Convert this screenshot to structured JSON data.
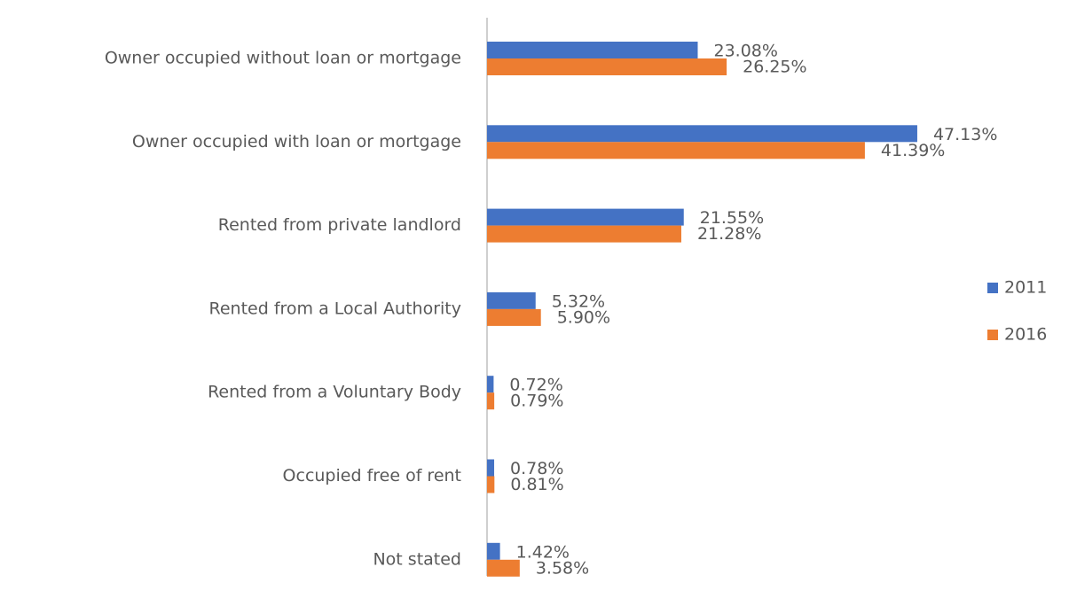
{
  "chart_data": {
    "type": "hbar",
    "categories": [
      "Owner occupied without loan or mortgage",
      "Owner occupied with loan or mortgage",
      "Rented from private landlord",
      "Rented from a Local Authority",
      "Rented from a Voluntary Body",
      "Occupied free of rent",
      "Not stated"
    ],
    "series": [
      {
        "name": "2011",
        "color": "#4472c4",
        "values": [
          23.08,
          47.13,
          21.55,
          5.32,
          0.72,
          0.78,
          1.42
        ],
        "value_labels": [
          "23.08%",
          "47.13%",
          "21.55%",
          "5.32%",
          "0.72%",
          "0.78%",
          "1.42%"
        ]
      },
      {
        "name": "2016",
        "color": "#ed7d31",
        "values": [
          26.25,
          41.39,
          21.28,
          5.9,
          0.79,
          0.81,
          3.58
        ],
        "value_labels": [
          "26.25%",
          "41.39%",
          "21.28%",
          "5.90%",
          "0.79%",
          "0.81%",
          "3.58%"
        ]
      }
    ],
    "legend": "right"
  }
}
